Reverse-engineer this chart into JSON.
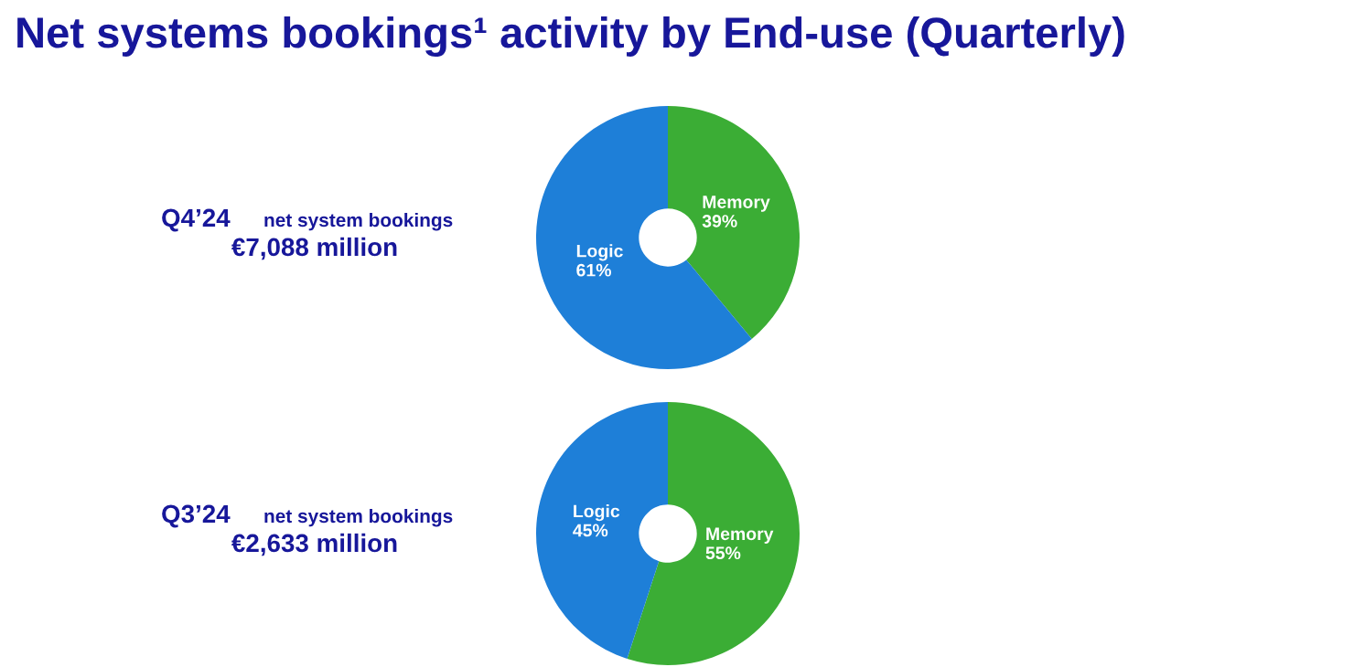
{
  "chart_data": [
    {
      "type": "other",
      "title": "Net systems bookings¹ activity by End-use (Quarterly)"
    },
    {
      "type": "donut",
      "title": "Q4’24",
      "subtitle": "net system bookings",
      "annotations": [
        "€7,088 million"
      ],
      "categories": [
        "Memory",
        "Logic"
      ],
      "values": [
        39,
        61
      ],
      "value_labels": [
        "39%",
        "61%"
      ],
      "colors": [
        "#3bad35",
        "#1e7fd8"
      ]
    },
    {
      "type": "donut",
      "title": "Q3’24",
      "subtitle": "net system bookings",
      "annotations": [
        "€2,633 million"
      ],
      "categories": [
        "Memory",
        "Logic"
      ],
      "values": [
        55,
        45
      ],
      "value_labels": [
        "55%",
        "45%"
      ],
      "colors": [
        "#3bad35",
        "#1e7fd8"
      ]
    }
  ]
}
